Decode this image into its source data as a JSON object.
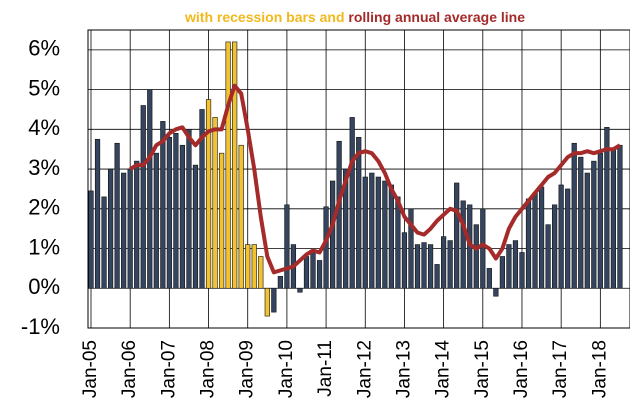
{
  "chart_data": {
    "type": "bar",
    "subtitle": [
      {
        "text": "with recession bars and",
        "color": "#f2b81c"
      },
      {
        "text": "rolling annual average line",
        "color": "#a52a2a"
      }
    ],
    "categories": [
      "Jan-05",
      null,
      null,
      null,
      null,
      null,
      "Jan-06",
      null,
      null,
      null,
      null,
      null,
      "Jan-07",
      null,
      null,
      null,
      null,
      null,
      "Jan-08",
      null,
      null,
      null,
      null,
      null,
      "Jan-09",
      null,
      null,
      null,
      null,
      null,
      "Jan-10",
      null,
      null,
      null,
      null,
      null,
      "Jan-11",
      null,
      null,
      null,
      null,
      null,
      "Jan-12",
      null,
      null,
      null,
      null,
      null,
      "Jan-13",
      null,
      null,
      null,
      null,
      null,
      "Jan-14",
      null,
      null,
      null,
      null,
      null,
      "Jan-15",
      null,
      null,
      null,
      null,
      null,
      "Jan-16",
      null,
      null,
      null,
      null,
      null,
      "Jan-17",
      null,
      null,
      null,
      null,
      null,
      "Jan-18",
      null,
      null,
      null
    ],
    "values": [
      2.45,
      3.75,
      2.3,
      3.0,
      3.65,
      2.9,
      3.0,
      3.2,
      4.6,
      5.0,
      3.4,
      4.2,
      3.8,
      3.9,
      3.6,
      4.0,
      3.1,
      4.5,
      4.75,
      4.3,
      3.4,
      6.2,
      6.2,
      3.6,
      1.1,
      1.1,
      0.8,
      -0.7,
      -0.6,
      0.3,
      2.1,
      1.1,
      -0.1,
      0.8,
      0.9,
      0.7,
      2.05,
      2.7,
      3.7,
      3.0,
      4.3,
      3.8,
      2.8,
      2.9,
      2.8,
      2.7,
      2.6,
      2.3,
      1.4,
      2.0,
      1.1,
      1.15,
      1.1,
      0.6,
      1.3,
      1.2,
      2.65,
      2.2,
      2.1,
      1.6,
      2.0,
      0.5,
      -0.2,
      0.8,
      1.1,
      1.2,
      0.9,
      2.25,
      2.4,
      2.55,
      1.6,
      2.1,
      2.6,
      2.5,
      3.65,
      3.3,
      2.9,
      3.2,
      3.4,
      4.05,
      3.5,
      3.6
    ],
    "colors": [
      "#36455f",
      "#36455f",
      "#36455f",
      "#36455f",
      "#36455f",
      "#36455f",
      "#36455f",
      "#36455f",
      "#36455f",
      "#36455f",
      "#36455f",
      "#36455f",
      "#36455f",
      "#36455f",
      "#36455f",
      "#36455f",
      "#36455f",
      "#36455f",
      "#f2c230",
      "#f2c230",
      "#f2c230",
      "#f2c230",
      "#f2c230",
      "#f2c230",
      "#f2c230",
      "#f2c230",
      "#f2c230",
      "#f2c230",
      "#36455f",
      "#36455f",
      "#36455f",
      "#36455f",
      "#36455f",
      "#36455f",
      "#36455f",
      "#36455f",
      "#36455f",
      "#36455f",
      "#36455f",
      "#36455f",
      "#36455f",
      "#36455f",
      "#36455f",
      "#36455f",
      "#36455f",
      "#36455f",
      "#36455f",
      "#36455f",
      "#36455f",
      "#36455f",
      "#36455f",
      "#36455f",
      "#36455f",
      "#36455f",
      "#36455f",
      "#36455f",
      "#36455f",
      "#36455f",
      "#36455f",
      "#36455f",
      "#36455f",
      "#36455f",
      "#36455f",
      "#36455f",
      "#36455f",
      "#36455f",
      "#36455f",
      "#36455f",
      "#36455f",
      "#36455f",
      "#36455f",
      "#36455f",
      "#36455f",
      "#36455f",
      "#36455f",
      "#36455f",
      "#36455f",
      "#36455f",
      "#36455f",
      "#36455f",
      "#36455f",
      "#36455f"
    ],
    "line": {
      "color": "#a52a2a",
      "values": [
        null,
        null,
        null,
        null,
        null,
        null,
        3.0,
        3.1,
        3.1,
        3.3,
        3.6,
        3.7,
        3.9,
        4.0,
        4.05,
        3.8,
        3.6,
        3.8,
        3.95,
        4.0,
        4.0,
        4.6,
        5.1,
        4.9,
        4.0,
        3.0,
        1.8,
        0.8,
        0.4,
        0.45,
        0.5,
        0.55,
        0.7,
        0.85,
        0.95,
        0.9,
        1.2,
        1.6,
        2.2,
        2.7,
        3.2,
        3.4,
        3.45,
        3.4,
        3.2,
        2.9,
        2.5,
        2.2,
        1.8,
        1.6,
        1.4,
        1.35,
        1.5,
        1.7,
        1.85,
        2.0,
        1.95,
        1.6,
        1.1,
        1.0,
        1.1,
        1.0,
        0.75,
        1.0,
        1.5,
        1.8,
        2.0,
        2.2,
        2.4,
        2.6,
        2.8,
        2.9,
        3.1,
        3.3,
        3.4,
        3.4,
        3.45,
        3.4,
        3.45,
        3.5,
        3.5,
        3.6
      ]
    },
    "ylim": [
      -1,
      6.5
    ],
    "yticks": [
      {
        "value": -1,
        "label": "-1%"
      },
      {
        "value": 0,
        "label": "0%"
      },
      {
        "value": 1,
        "label": "1%"
      },
      {
        "value": 2,
        "label": "2%"
      },
      {
        "value": 3,
        "label": "3%"
      },
      {
        "value": 4,
        "label": "4%"
      },
      {
        "value": 5,
        "label": "5%"
      },
      {
        "value": 6,
        "label": "6%"
      }
    ],
    "grid": true
  }
}
